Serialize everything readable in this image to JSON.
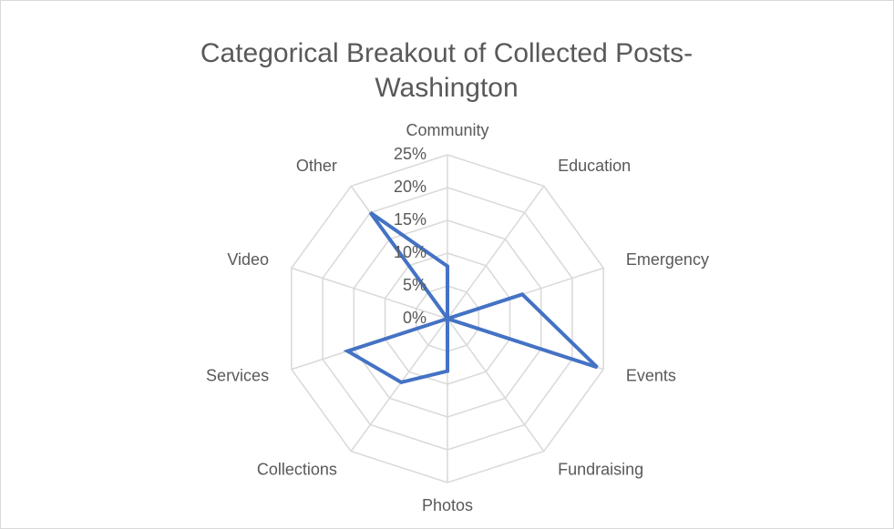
{
  "chart_data": {
    "type": "radar",
    "title": "Categorical Breakout of Collected Posts-Washington",
    "categories": [
      "Community",
      "Education",
      "Emergency",
      "Events",
      "Fundraising",
      "Photos",
      "Collections",
      "Services",
      "Video",
      "Other"
    ],
    "series": [
      {
        "name": "Washington",
        "color": "#4472c4",
        "values": [
          8,
          0,
          12,
          24,
          0,
          8,
          12,
          16,
          0,
          20
        ]
      }
    ],
    "ylim": [
      0,
      25
    ],
    "yticks": [
      {
        "value": 0,
        "label": "0%"
      },
      {
        "value": 5,
        "label": "5%"
      },
      {
        "value": 10,
        "label": "10%"
      },
      {
        "value": 15,
        "label": "15%"
      },
      {
        "value": 20,
        "label": "20%"
      },
      {
        "value": 25,
        "label": "25%"
      }
    ],
    "grid": true
  }
}
